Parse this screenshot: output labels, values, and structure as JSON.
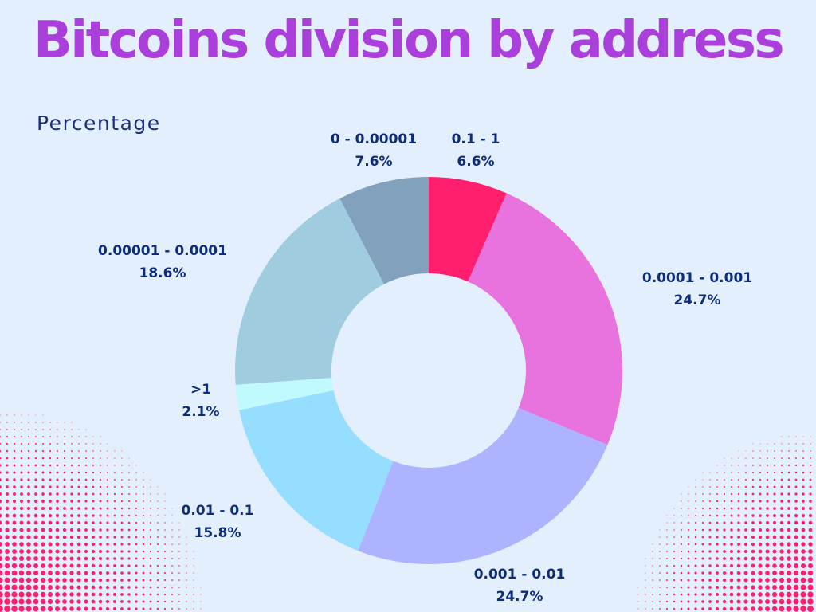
{
  "title": "Bitcoins division by address",
  "subtitle": "Percentage",
  "colors": {
    "background": "#e3effc",
    "title": "#ab3fdc",
    "label": "#0d2c7a",
    "dots": "#ff1f6e"
  },
  "chart_data": {
    "type": "pie",
    "variant": "donut",
    "title": "Bitcoins division by address",
    "subtitle": "Percentage",
    "start": "12 o'clock",
    "direction": "clockwise",
    "slices": [
      {
        "label": "0.1 - 1",
        "value": 6.6,
        "value_label": "6.6%",
        "color": "#ff1f6e"
      },
      {
        "label": "0.0001 - 0.001",
        "value": 24.7,
        "value_label": "24.7%",
        "color": "#e873de"
      },
      {
        "label": "0.001 - 0.01",
        "value": 24.7,
        "value_label": "24.7%",
        "color": "#adb3fe"
      },
      {
        "label": "0.01 - 0.1",
        "value": 15.8,
        "value_label": "15.8%",
        "color": "#96deff"
      },
      {
        "label": ">1",
        "value": 2.1,
        "value_label": "2.1%",
        "color": "#c0faff"
      },
      {
        "label": "0.00001 - 0.0001",
        "value": 18.6,
        "value_label": "18.6%",
        "color": "#a0cce0"
      },
      {
        "label": "0 - 0.00001",
        "value": 7.6,
        "value_label": "7.6%",
        "color": "#82a1bc"
      }
    ]
  }
}
